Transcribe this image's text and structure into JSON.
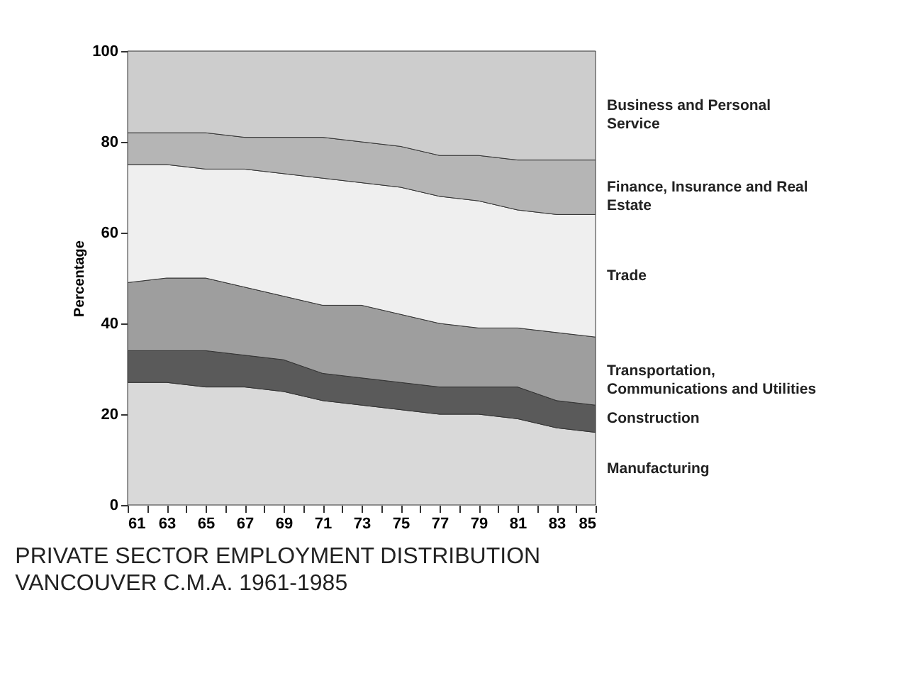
{
  "chart_data": {
    "type": "area",
    "stacked": true,
    "title": "PRIVATE SECTOR EMPLOYMENT DISTRIBUTION",
    "subtitle": "VANCOUVER C.M.A. 1961-1985",
    "ylabel": "Percentage",
    "x": [
      1961,
      1963,
      1965,
      1967,
      1969,
      1971,
      1973,
      1975,
      1977,
      1979,
      1981,
      1983,
      1985
    ],
    "xlim": [
      1961,
      1985
    ],
    "xticks": [
      {
        "value": 1961,
        "label": "61"
      },
      {
        "value": 1962,
        "label": null
      },
      {
        "value": 1963,
        "label": "63"
      },
      {
        "value": 1964,
        "label": null
      },
      {
        "value": 1965,
        "label": "65"
      },
      {
        "value": 1966,
        "label": null
      },
      {
        "value": 1967,
        "label": "67"
      },
      {
        "value": 1968,
        "label": null
      },
      {
        "value": 1969,
        "label": "69"
      },
      {
        "value": 1970,
        "label": null
      },
      {
        "value": 1971,
        "label": "71"
      },
      {
        "value": 1972,
        "label": null
      },
      {
        "value": 1973,
        "label": "73"
      },
      {
        "value": 1974,
        "label": null
      },
      {
        "value": 1975,
        "label": "75"
      },
      {
        "value": 1976,
        "label": null
      },
      {
        "value": 1977,
        "label": "77"
      },
      {
        "value": 1978,
        "label": null
      },
      {
        "value": 1979,
        "label": "79"
      },
      {
        "value": 1980,
        "label": null
      },
      {
        "value": 1981,
        "label": "81"
      },
      {
        "value": 1982,
        "label": null
      },
      {
        "value": 1983,
        "label": "83"
      },
      {
        "value": 1984,
        "label": null
      },
      {
        "value": 1985,
        "label": "85"
      }
    ],
    "ylim": [
      0,
      100
    ],
    "yticks": [
      0,
      20,
      40,
      60,
      80,
      100
    ],
    "grid": false,
    "legend": false,
    "series": [
      {
        "name": "Manufacturing",
        "color": "#d9d9d9",
        "values": [
          27,
          27,
          26,
          26,
          25,
          23,
          22,
          21,
          20,
          20,
          19,
          17,
          16
        ]
      },
      {
        "name": "Construction",
        "color": "#5a5a5a",
        "values": [
          7,
          7,
          8,
          7,
          7,
          6,
          6,
          6,
          6,
          6,
          7,
          6,
          6
        ]
      },
      {
        "name": "Transportation, Communications and Utilities",
        "color": "#9e9e9e",
        "values": [
          15,
          16,
          16,
          15,
          14,
          15,
          16,
          15,
          14,
          13,
          13,
          15,
          15
        ]
      },
      {
        "name": "Trade",
        "color": "#efefef",
        "values": [
          26,
          25,
          24,
          26,
          27,
          28,
          27,
          28,
          28,
          28,
          26,
          26,
          27
        ]
      },
      {
        "name": "Finance, Insurance and Real Estate",
        "color": "#b5b5b5",
        "values": [
          7,
          7,
          8,
          7,
          8,
          9,
          9,
          9,
          9,
          10,
          11,
          12,
          12
        ]
      },
      {
        "name": "Business and Personal Service",
        "color": "#cdcdcd",
        "values": [
          18,
          18,
          18,
          19,
          19,
          19,
          20,
          21,
          23,
          23,
          24,
          24,
          24
        ]
      }
    ]
  }
}
